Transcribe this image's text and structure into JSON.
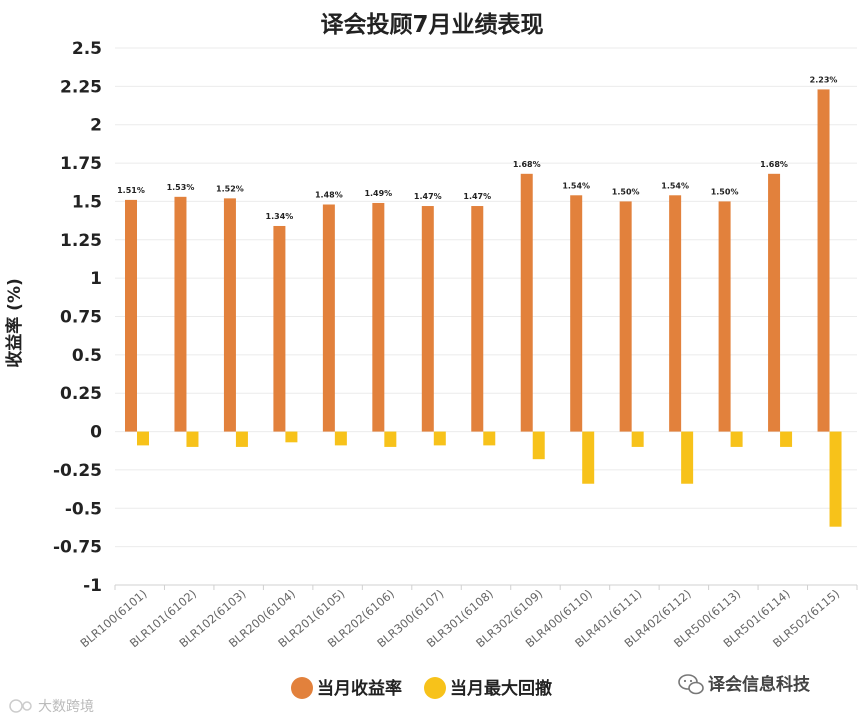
{
  "colors": {
    "orange": "#E2813C",
    "yellow": "#F7C21A",
    "grid": "#EBEBEB",
    "axis": "#D0D0D0"
  },
  "watermark": {
    "text": "译会信息科技",
    "icon": "wechat-icon"
  },
  "watermark2": {
    "text": "大数跨境",
    "icon": "logo-icon"
  },
  "chart_data": {
    "type": "bar",
    "title": "译会投顾7月业绩表现",
    "ylabel": "收益率 (%)",
    "xlabel": "",
    "ylim": [
      -1,
      2.5
    ],
    "yticks": [
      2.5,
      2.25,
      2,
      1.75,
      1.5,
      1.25,
      1,
      0.75,
      0.5,
      0.25,
      0,
      -0.25,
      -0.5,
      -0.75,
      -1
    ],
    "yticklabels": [
      "2.5",
      "2.25",
      "2",
      "1.75",
      "1.5",
      "1.25",
      "1",
      "0.75",
      "0.5",
      "0.25",
      "0",
      "-0.25",
      "-0.5",
      "-0.75",
      "-1"
    ],
    "categories": [
      "BLR100(6101)",
      "BLR101(6102)",
      "BLR102(6103)",
      "BLR200(6104)",
      "BLR201(6105)",
      "BLR202(6106)",
      "BLR300(6107)",
      "BLR301(6108)",
      "BLR302(6109)",
      "BLR400(6110)",
      "BLR401(6111)",
      "BLR402(6112)",
      "BLR500(6113)",
      "BLR501(6114)",
      "BLR502(6115)"
    ],
    "series": [
      {
        "name": "当月收益率",
        "color": "#E2813C",
        "values": [
          1.51,
          1.53,
          1.52,
          1.34,
          1.48,
          1.49,
          1.47,
          1.47,
          1.68,
          1.54,
          1.5,
          1.54,
          1.5,
          1.68,
          2.23
        ],
        "labels": [
          "1.51%",
          "1.53%",
          "1.52%",
          "1.34%",
          "1.48%",
          "1.49%",
          "1.47%",
          "1.47%",
          "1.68%",
          "1.54%",
          "1.50%",
          "1.54%",
          "1.50%",
          "1.68%",
          "2.23%"
        ]
      },
      {
        "name": "当月最大回撤",
        "color": "#F7C21A",
        "values": [
          -0.09,
          -0.1,
          -0.1,
          -0.07,
          -0.09,
          -0.1,
          -0.09,
          -0.09,
          -0.18,
          -0.34,
          -0.1,
          -0.34,
          -0.1,
          -0.1,
          -0.62
        ]
      }
    ],
    "legend": "bottom-center"
  }
}
